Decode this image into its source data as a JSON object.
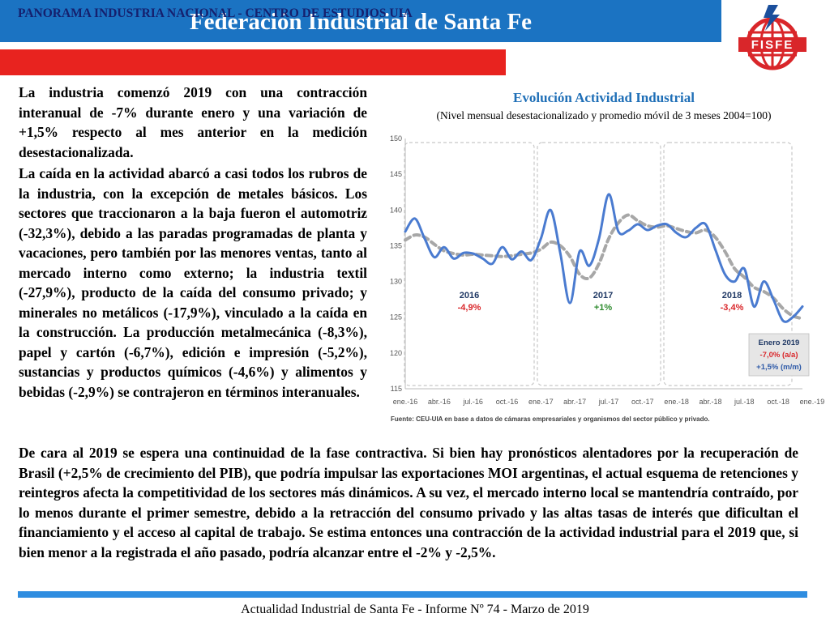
{
  "header": {
    "title": "Federación Industrial de Santa Fe"
  },
  "logo": {
    "text": "FISFE",
    "colors": {
      "red": "#d9262a",
      "blue": "#1b4f9c"
    }
  },
  "subheader": {
    "text": "PANORAMA INDUSTRIA NACIONAL - CENTRO DE ESTUDIOS UIA"
  },
  "paragraphs": {
    "p1": "La industria comenzó 2019 con una contracción interanual de -7% durante enero y una variación de +1,5% respecto al mes anterior en la medición desestacionalizada.",
    "p2": "La caída en la actividad abarcó a casi todos los rubros de la industria, con la excepción de metales básicos. Los sectores que traccionaron a la baja fueron el automotriz (-32,3%), debido a las paradas programadas de planta y vacaciones, pero también por las menores ventas, tanto al mercado interno como externo; la industria textil (-27,9%), producto de la caída del consumo privado; y minerales no metálicos (-17,9%), vinculado a la caída en la construcción. La producción metalmecánica (-8,3%), papel y cartón (-6,7%), edición e impresión (-5,2%), sustancias y productos químicos (-4,6%) y alimentos y bebidas (-2,9%) se contrajeron en términos interanuales.",
    "p3": "De cara al 2019 se espera una continuidad de la fase contractiva. Si bien hay pronósticos alentadores por la recuperación de Brasil (+2,5% de crecimiento del PIB), que podría impulsar las exportaciones MOI argentinas, el actual esquema de retenciones y reintegros afecta la competitividad de los sectores más dinámicos. A su vez, el mercado interno local se mantendría contraído, por lo menos durante el primer semestre, debido a la retracción del consumo privado y las altas tasas de interés que dificultan el financiamiento y el acceso al capital de trabajo. Se estima entonces una contracción de la actividad industrial para el 2019 que, si bien menor a la registrada el año pasado, podría alcanzar entre el -2% y -2,5%."
  },
  "chart_data": {
    "type": "line",
    "title": "Evolución Actividad Industrial",
    "subtitle": "(Nivel mensual desestacionalizado y promedio móvil de 3 meses 2004=100)",
    "ylim": [
      115,
      150
    ],
    "yticks": [
      "115",
      "120",
      "125",
      "130",
      "135",
      "140",
      "145",
      "150"
    ],
    "xticks": [
      "ene.-16",
      "abr.-16",
      "jul.-16",
      "oct.-16",
      "ene.-17",
      "abr.-17",
      "jul.-17",
      "oct.-17",
      "ene.-18",
      "abr.-18",
      "jul.-18",
      "oct.-18",
      "ene.-19"
    ],
    "grid": false,
    "series": [
      {
        "values": [
          137.0,
          138.8,
          136.0,
          133.4,
          134.8,
          133.2,
          134.0,
          133.9,
          133.2,
          132.5,
          134.8,
          133.1,
          134.2,
          133.0,
          136.0,
          140.0,
          134.0,
          127.0,
          134.2,
          132.2,
          136.0,
          142.2,
          137.0,
          137.1,
          138.0,
          137.2,
          137.8,
          138.0,
          136.8,
          136.2,
          137.5,
          138.0,
          134.5,
          131.0,
          130.0,
          131.8,
          126.5,
          130.0,
          127.5,
          124.5,
          125.0,
          126.5
        ],
        "color": "#4a7bd0"
      },
      {
        "values": [
          135.8,
          136.5,
          136.2,
          135.2,
          134.3,
          133.9,
          133.7,
          133.8,
          133.7,
          133.6,
          133.5,
          133.6,
          133.8,
          134.0,
          134.5,
          135.5,
          135.0,
          133.5,
          131.0,
          130.5,
          132.5,
          136.0,
          138.2,
          139.3,
          138.5,
          137.8,
          137.6,
          137.8,
          137.4,
          137.0,
          136.8,
          137.2,
          136.2,
          134.2,
          131.8,
          130.6,
          129.2,
          128.6,
          127.7,
          126.2,
          125.2,
          124.8
        ],
        "color": "#a7a7a7"
      }
    ],
    "annotations": [
      {
        "year": "2016",
        "value": "-4,9%"
      },
      {
        "year": "2017",
        "value": "+1%"
      },
      {
        "year": "2018",
        "value": "-3,4%"
      }
    ],
    "callout": {
      "title": "Enero 2019",
      "yoy": "-7,0% (a/a)",
      "mom": "+1,5% (m/m)"
    },
    "source": "Fuente: CEU-UIA en base a datos de cámaras empresariales y organismos del sector público y privado."
  },
  "footer": {
    "text": "Actualidad Industrial de Santa Fe - Informe Nº 74 - Marzo de 2019"
  }
}
